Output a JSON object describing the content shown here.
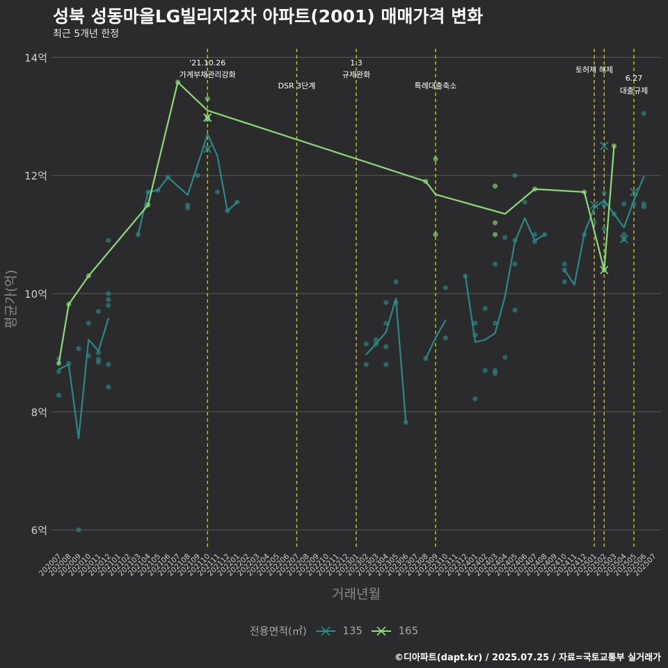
{
  "header": {
    "title": "성북 성동마을LG빌리지2차 아파트(2001) 매매가격 변화",
    "subtitle": "최근 5개년 한정"
  },
  "caption": "©디아파트(dapt.kr) / 2025.07.25 / 자료=국토교통부 실거래가",
  "colors": {
    "background": "#2b2a2c",
    "grid": "#5a5a5a",
    "series_135": "#2a8c8a",
    "series_165": "#8fe07c",
    "vline": "#d4d41e",
    "tick": "#cfcfcf",
    "axis_title": "#8a8a8a"
  },
  "chart_data": {
    "type": "line",
    "title": "성북 성동마을LG빌리지2차 아파트(2001) 매매가격 변화",
    "xlabel": "거래년월",
    "ylabel": "평균가(억)",
    "ylim": [
      5.7,
      14.3
    ],
    "y_ticks": [
      6,
      8,
      10,
      12,
      14
    ],
    "y_tick_labels": [
      "6억",
      "8억",
      "10억",
      "12억",
      "14억"
    ],
    "categories": [
      "202007",
      "202008",
      "202009",
      "202010",
      "202011",
      "202012",
      "202101",
      "202102",
      "202103",
      "202104",
      "202105",
      "202106",
      "202107",
      "202108",
      "202109",
      "202110",
      "202111",
      "202112",
      "202201",
      "202202",
      "202203",
      "202204",
      "202205",
      "202206",
      "202207",
      "202208",
      "202209",
      "202210",
      "202211",
      "202212",
      "202301",
      "202302",
      "202303",
      "202304",
      "202305",
      "202306",
      "202307",
      "202308",
      "202309",
      "202310",
      "202311",
      "202312",
      "202401",
      "202402",
      "202403",
      "202404",
      "202405",
      "202406",
      "202407",
      "202408",
      "202409",
      "202410",
      "202411",
      "202412",
      "202501",
      "202502",
      "202503",
      "202504",
      "202505",
      "202506",
      "202507"
    ],
    "legend_title": "전용면적(㎡)",
    "series": [
      {
        "name": "135",
        "color": "#2a8c8a",
        "line_segments": [
          [
            [
              0,
              8.72
            ],
            [
              1,
              8.8
            ],
            [
              2,
              7.55
            ],
            [
              3,
              9.22
            ],
            [
              4,
              9.03
            ],
            [
              5,
              9.58
            ]
          ],
          [
            [
              8,
              11.0
            ],
            [
              9,
              11.72
            ],
            [
              10,
              11.75
            ],
            [
              11,
              11.97
            ],
            [
              12,
              11.82
            ],
            [
              13,
              11.67
            ],
            [
              14,
              12.18
            ],
            [
              15,
              12.7
            ],
            [
              16,
              12.33
            ],
            [
              17,
              11.4
            ],
            [
              18,
              11.55
            ]
          ],
          [
            [
              31,
              8.97
            ],
            [
              32,
              9.15
            ],
            [
              33,
              9.35
            ],
            [
              34,
              9.92
            ],
            [
              35,
              7.82
            ]
          ],
          [
            [
              37,
              8.9
            ],
            [
              38,
              9.25
            ],
            [
              39,
              9.55
            ]
          ],
          [
            [
              41,
              10.3
            ],
            [
              42,
              9.18
            ],
            [
              43,
              9.22
            ],
            [
              44,
              9.33
            ],
            [
              45,
              9.95
            ],
            [
              46,
              10.88
            ],
            [
              47,
              11.28
            ],
            [
              48,
              10.9
            ],
            [
              49,
              11.0
            ]
          ],
          [
            [
              51,
              10.4
            ],
            [
              52,
              10.15
            ],
            [
              53,
              11.02
            ],
            [
              54,
              11.45
            ],
            [
              55,
              11.58
            ],
            [
              56,
              11.35
            ],
            [
              57,
              11.12
            ],
            [
              58,
              11.58
            ],
            [
              59,
              11.98
            ]
          ]
        ],
        "points": [
          [
            0,
            8.9
          ],
          [
            0,
            8.68
          ],
          [
            0,
            8.28
          ],
          [
            1,
            8.82
          ],
          [
            2,
            6.0
          ],
          [
            2,
            9.07
          ],
          [
            3,
            9.5
          ],
          [
            3,
            8.95
          ],
          [
            4,
            8.84
          ],
          [
            4,
            8.89
          ],
          [
            4,
            9.0
          ],
          [
            4,
            9.7
          ],
          [
            5,
            10.9
          ],
          [
            5,
            10.0
          ],
          [
            5,
            9.9
          ],
          [
            5,
            9.8
          ],
          [
            5,
            8.8
          ],
          [
            5,
            8.42
          ],
          [
            8,
            11.0
          ],
          [
            9,
            11.72
          ],
          [
            10,
            11.75
          ],
          [
            11,
            11.97
          ],
          [
            13,
            11.5
          ],
          [
            13,
            11.45
          ],
          [
            14,
            12.0
          ],
          [
            15,
            12.45
          ],
          [
            15,
            12.97
          ],
          [
            16,
            11.72
          ],
          [
            17,
            11.4
          ],
          [
            18,
            11.55
          ],
          [
            31,
            9.15
          ],
          [
            31,
            8.8
          ],
          [
            32,
            9.22
          ],
          [
            32,
            9.15
          ],
          [
            33,
            9.85
          ],
          [
            33,
            9.5
          ],
          [
            33,
            9.1
          ],
          [
            33,
            8.8
          ],
          [
            34,
            10.2
          ],
          [
            34,
            9.85
          ],
          [
            35,
            7.82
          ],
          [
            37,
            8.9
          ],
          [
            39,
            10.1
          ],
          [
            39,
            9.25
          ],
          [
            41,
            10.3
          ],
          [
            42,
            9.5
          ],
          [
            42,
            9.3
          ],
          [
            42,
            8.22
          ],
          [
            43,
            9.75
          ],
          [
            43,
            8.7
          ],
          [
            44,
            9.5
          ],
          [
            44,
            8.7
          ],
          [
            44,
            8.65
          ],
          [
            44,
            10.5
          ],
          [
            45,
            10.95
          ],
          [
            45,
            8.92
          ],
          [
            46,
            12.0
          ],
          [
            46,
            10.9
          ],
          [
            46,
            10.5
          ],
          [
            46,
            9.72
          ],
          [
            47,
            11.55
          ],
          [
            48,
            11.0
          ],
          [
            48,
            10.88
          ],
          [
            49,
            11.0
          ],
          [
            51,
            10.5
          ],
          [
            51,
            10.4
          ],
          [
            51,
            10.2
          ],
          [
            53,
            11.0
          ],
          [
            54,
            11.2
          ],
          [
            55,
            11.7
          ],
          [
            55,
            11.5
          ],
          [
            55,
            11.1
          ],
          [
            56,
            11.35
          ],
          [
            57,
            11.52
          ],
          [
            57,
            11.0
          ],
          [
            57,
            10.92
          ],
          [
            58,
            11.52
          ],
          [
            59,
            13.05
          ],
          [
            59,
            11.52
          ],
          [
            59,
            11.47
          ]
        ],
        "cross_points": [
          [
            15,
            12.45
          ],
          [
            54,
            11.5
          ],
          [
            55,
            12.5
          ],
          [
            57,
            10.92
          ],
          [
            58,
            11.72
          ]
        ]
      },
      {
        "name": "165",
        "color": "#8fe07c",
        "line_segments": [
          [
            [
              0,
              8.82
            ],
            [
              1,
              9.82
            ],
            [
              3,
              10.3
            ],
            [
              9,
              11.5
            ],
            [
              12,
              13.58
            ],
            [
              15,
              13.1
            ],
            [
              37,
              11.9
            ],
            [
              38,
              11.68
            ],
            [
              45,
              11.35
            ],
            [
              48,
              11.77
            ],
            [
              53,
              11.72
            ],
            [
              55,
              10.4
            ],
            [
              56,
              12.5
            ]
          ]
        ],
        "points": [
          [
            0,
            8.82
          ],
          [
            1,
            9.82
          ],
          [
            3,
            10.3
          ],
          [
            9,
            11.5
          ],
          [
            12,
            13.58
          ],
          [
            15,
            13.3
          ],
          [
            15,
            13.0
          ],
          [
            15,
            12.95
          ],
          [
            37,
            11.9
          ],
          [
            38,
            12.28
          ],
          [
            38,
            11.0
          ],
          [
            44,
            11.82
          ],
          [
            44,
            11.2
          ],
          [
            44,
            11.0
          ],
          [
            48,
            11.77
          ],
          [
            53,
            11.72
          ],
          [
            55,
            10.4
          ],
          [
            56,
            12.5
          ]
        ],
        "cross_points": [
          [
            15,
            12.98
          ],
          [
            55,
            10.4
          ]
        ]
      }
    ],
    "annotations": [
      {
        "x": 15,
        "lines": [
          "'21.10.26",
          "가계부채관리강화"
        ],
        "level": "high"
      },
      {
        "x": 24,
        "lines": [
          "DSR 3단계"
        ],
        "level": "low"
      },
      {
        "x": 30,
        "lines": [
          "1.3",
          "규제완화"
        ],
        "level": "high"
      },
      {
        "x": 38,
        "lines": [
          "특례대출축소"
        ],
        "level": "low"
      },
      {
        "x": 54,
        "lines": [
          "토허제 해제"
        ],
        "level": "mid"
      },
      {
        "x": 55,
        "lines": [],
        "level": "none"
      },
      {
        "x": 58,
        "lines": [
          "6.27",
          "대출규제"
        ],
        "level": "low2"
      }
    ]
  }
}
